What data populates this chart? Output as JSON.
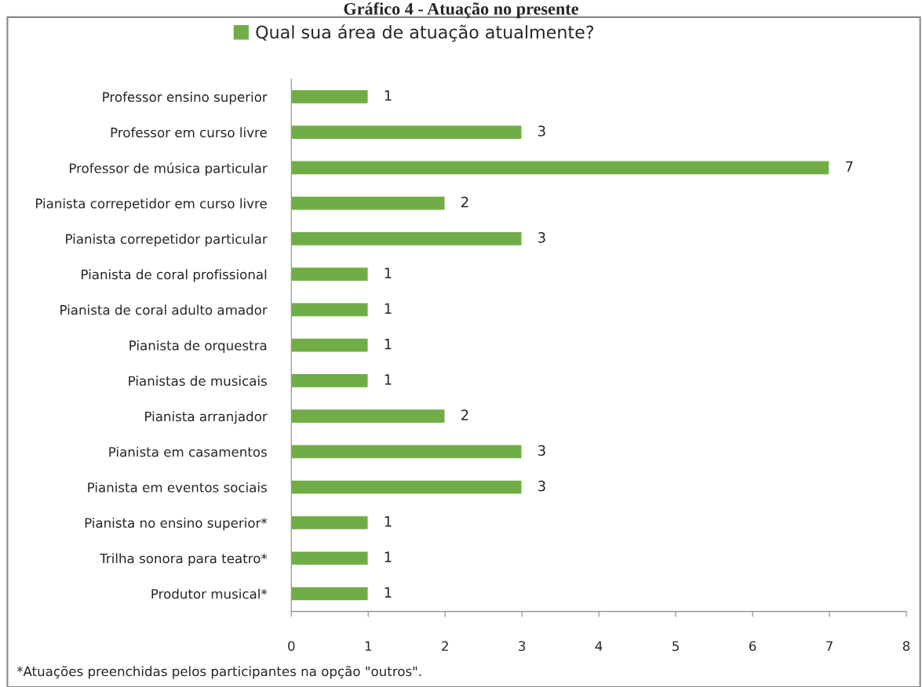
{
  "chart_data": {
    "type": "bar",
    "orientation": "horizontal",
    "title": "Gráfico 4 - Atuação no presente",
    "categories": [
      "Professor ensino superior",
      "Professor em curso livre",
      "Professor de música particular",
      "Pianista correpetidor em curso livre",
      "Pianista correpetidor particular",
      "Pianista de coral profissional",
      "Pianista de coral adulto amador",
      "Pianista de orquestra",
      "Pianistas de musicais",
      "Pianista arranjador",
      "Pianista em casamentos",
      "Pianista em eventos sociais",
      "Pianista no ensino superior*",
      "Trilha sonora para teatro*",
      "Produtor musical*"
    ],
    "series": [
      {
        "name": "Qual sua área de atuação atualmente?",
        "color": "#70ad47",
        "values": [
          1,
          3,
          7,
          2,
          3,
          1,
          1,
          1,
          1,
          2,
          3,
          3,
          1,
          1,
          1
        ]
      }
    ],
    "xlim": [
      0,
      8
    ],
    "xticks": [
      0,
      1,
      2,
      3,
      4,
      5,
      6,
      7,
      8
    ],
    "grid": false,
    "legend": "top",
    "data_labels": true,
    "annotations": [
      "*Atuações preenchidas pelos participantes na opção \"outros\"."
    ]
  }
}
